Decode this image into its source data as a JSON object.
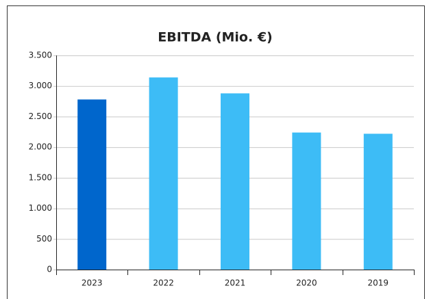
{
  "chart_data": {
    "type": "bar",
    "title": "EBITDA (Mio. €)",
    "categories": [
      "2023",
      "2022",
      "2021",
      "2020",
      "2019"
    ],
    "values": [
      2780,
      3140,
      2880,
      2240,
      2220
    ],
    "colors": [
      "#0066cc",
      "#3dbcf6",
      "#3dbcf6",
      "#3dbcf6",
      "#3dbcf6"
    ],
    "ylim": [
      0,
      3500
    ],
    "yticks": [
      0,
      500,
      {
        "value": 1000,
        "label": "1.000"
      },
      {
        "value": 1500,
        "label": "1.500"
      },
      {
        "value": 2000,
        "label": "2.000"
      },
      {
        "value": 2500,
        "label": "2.500"
      },
      {
        "value": 3000,
        "label": "3.000"
      },
      {
        "value": 3500,
        "label": "3.500"
      }
    ],
    "grid": true
  }
}
